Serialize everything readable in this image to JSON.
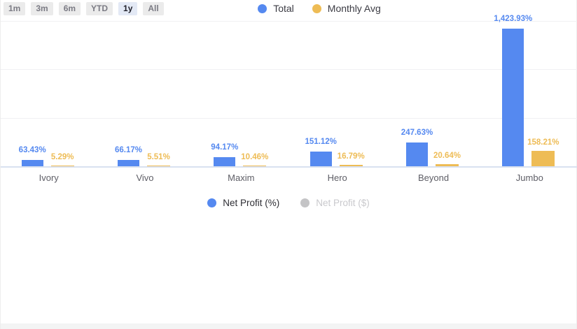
{
  "toolbar": {
    "ranges": [
      {
        "label": "1m",
        "selected": false
      },
      {
        "label": "3m",
        "selected": false
      },
      {
        "label": "6m",
        "selected": false
      },
      {
        "label": "YTD",
        "selected": false
      },
      {
        "label": "1y",
        "selected": true
      },
      {
        "label": "All",
        "selected": false
      }
    ]
  },
  "legend_top": {
    "items": [
      {
        "label": "Total",
        "color": "#5589F0",
        "active": true
      },
      {
        "label": "Monthly Avg",
        "color": "#EEBC55",
        "active": true
      }
    ]
  },
  "legend_bottom": {
    "items": [
      {
        "label": "Net Profit (%)",
        "color": "#5589F0",
        "active": true
      },
      {
        "label": "Net Profit ($)",
        "color": "#C4C4C6",
        "active": false
      }
    ]
  },
  "chart_data": {
    "type": "bar",
    "categories": [
      "Ivory",
      "Vivo",
      "Maxim",
      "Hero",
      "Beyond",
      "Jumbo"
    ],
    "series": [
      {
        "name": "Total",
        "color": "#5589F0",
        "values": [
          63.43,
          66.17,
          94.17,
          151.12,
          247.63,
          1423.93
        ],
        "labels": [
          "63.43%",
          "66.17%",
          "94.17%",
          "151.12%",
          "247.63%",
          "1,423.93%"
        ]
      },
      {
        "name": "Monthly Avg",
        "color": "#EEBC55",
        "values": [
          5.29,
          5.51,
          10.46,
          16.79,
          20.64,
          158.21
        ],
        "labels": [
          "5.29%",
          "5.51%",
          "10.46%",
          "16.79%",
          "20.64%",
          "158.21%"
        ]
      }
    ],
    "unit": "%",
    "ylim": [
      0,
      1500
    ],
    "gridline_step": 500,
    "y_tick_labels_visible": false,
    "grid": true,
    "legend_position": "top",
    "colors": {
      "grid": "#f1f1f3",
      "axis_baseline": "#d9e1f0"
    }
  }
}
